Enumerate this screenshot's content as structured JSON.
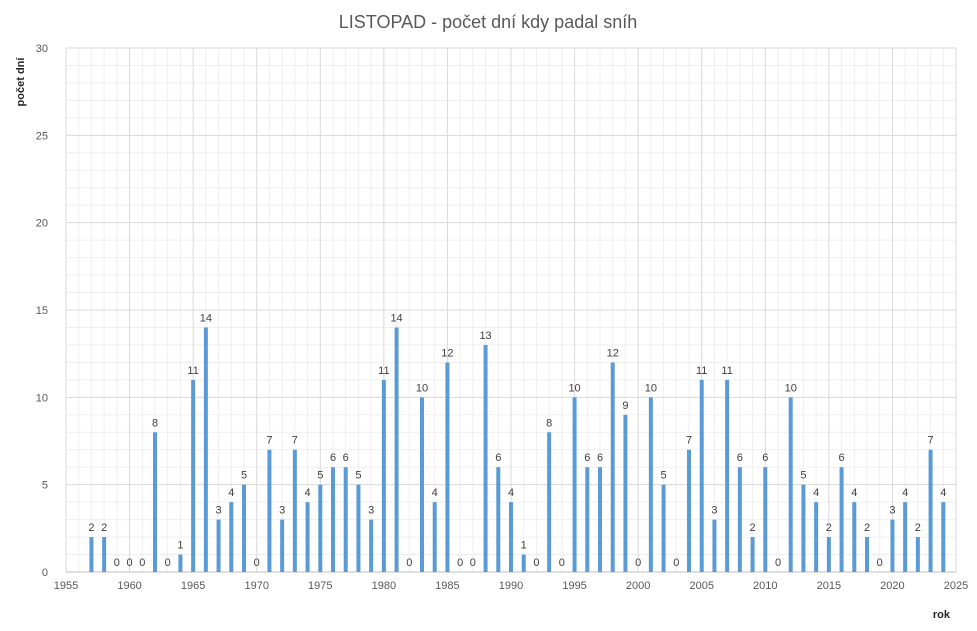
{
  "chart_data": {
    "type": "bar",
    "title": "LISTOPAD - počet dní kdy padal sníh",
    "xlabel": "rok",
    "ylabel": "počet dní",
    "xlim": [
      1955,
      2025
    ],
    "ylim": [
      0,
      30
    ],
    "x_ticks": [
      1955,
      1960,
      1965,
      1970,
      1975,
      1980,
      1985,
      1990,
      1995,
      2000,
      2005,
      2010,
      2015,
      2020,
      2025
    ],
    "y_ticks": [
      0,
      5,
      10,
      15,
      20,
      25,
      30
    ],
    "grid": true,
    "legend": "none",
    "bar_color": "#5b9bd5",
    "x": [
      1957,
      1958,
      1959,
      1960,
      1961,
      1962,
      1963,
      1964,
      1965,
      1966,
      1967,
      1968,
      1969,
      1970,
      1971,
      1972,
      1973,
      1974,
      1975,
      1976,
      1977,
      1978,
      1979,
      1980,
      1981,
      1982,
      1983,
      1984,
      1985,
      1986,
      1987,
      1988,
      1989,
      1990,
      1991,
      1992,
      1993,
      1994,
      1995,
      1996,
      1997,
      1998,
      1999,
      2000,
      2001,
      2002,
      2003,
      2004,
      2005,
      2006,
      2007,
      2008,
      2009,
      2010,
      2011,
      2012,
      2013,
      2014,
      2015,
      2016,
      2017,
      2018,
      2019,
      2020,
      2021,
      2022,
      2023,
      2024
    ],
    "values": [
      2,
      2,
      0,
      0,
      0,
      8,
      0,
      1,
      11,
      14,
      3,
      4,
      5,
      0,
      7,
      3,
      7,
      4,
      5,
      6,
      6,
      5,
      3,
      11,
      14,
      0,
      10,
      4,
      12,
      0,
      0,
      13,
      6,
      4,
      1,
      0,
      8,
      0,
      10,
      6,
      6,
      12,
      9,
      0,
      10,
      5,
      0,
      7,
      11,
      3,
      11,
      6,
      2,
      6,
      0,
      10,
      5,
      4,
      2,
      6,
      4,
      2,
      0,
      3,
      4,
      2,
      7,
      4
    ]
  }
}
